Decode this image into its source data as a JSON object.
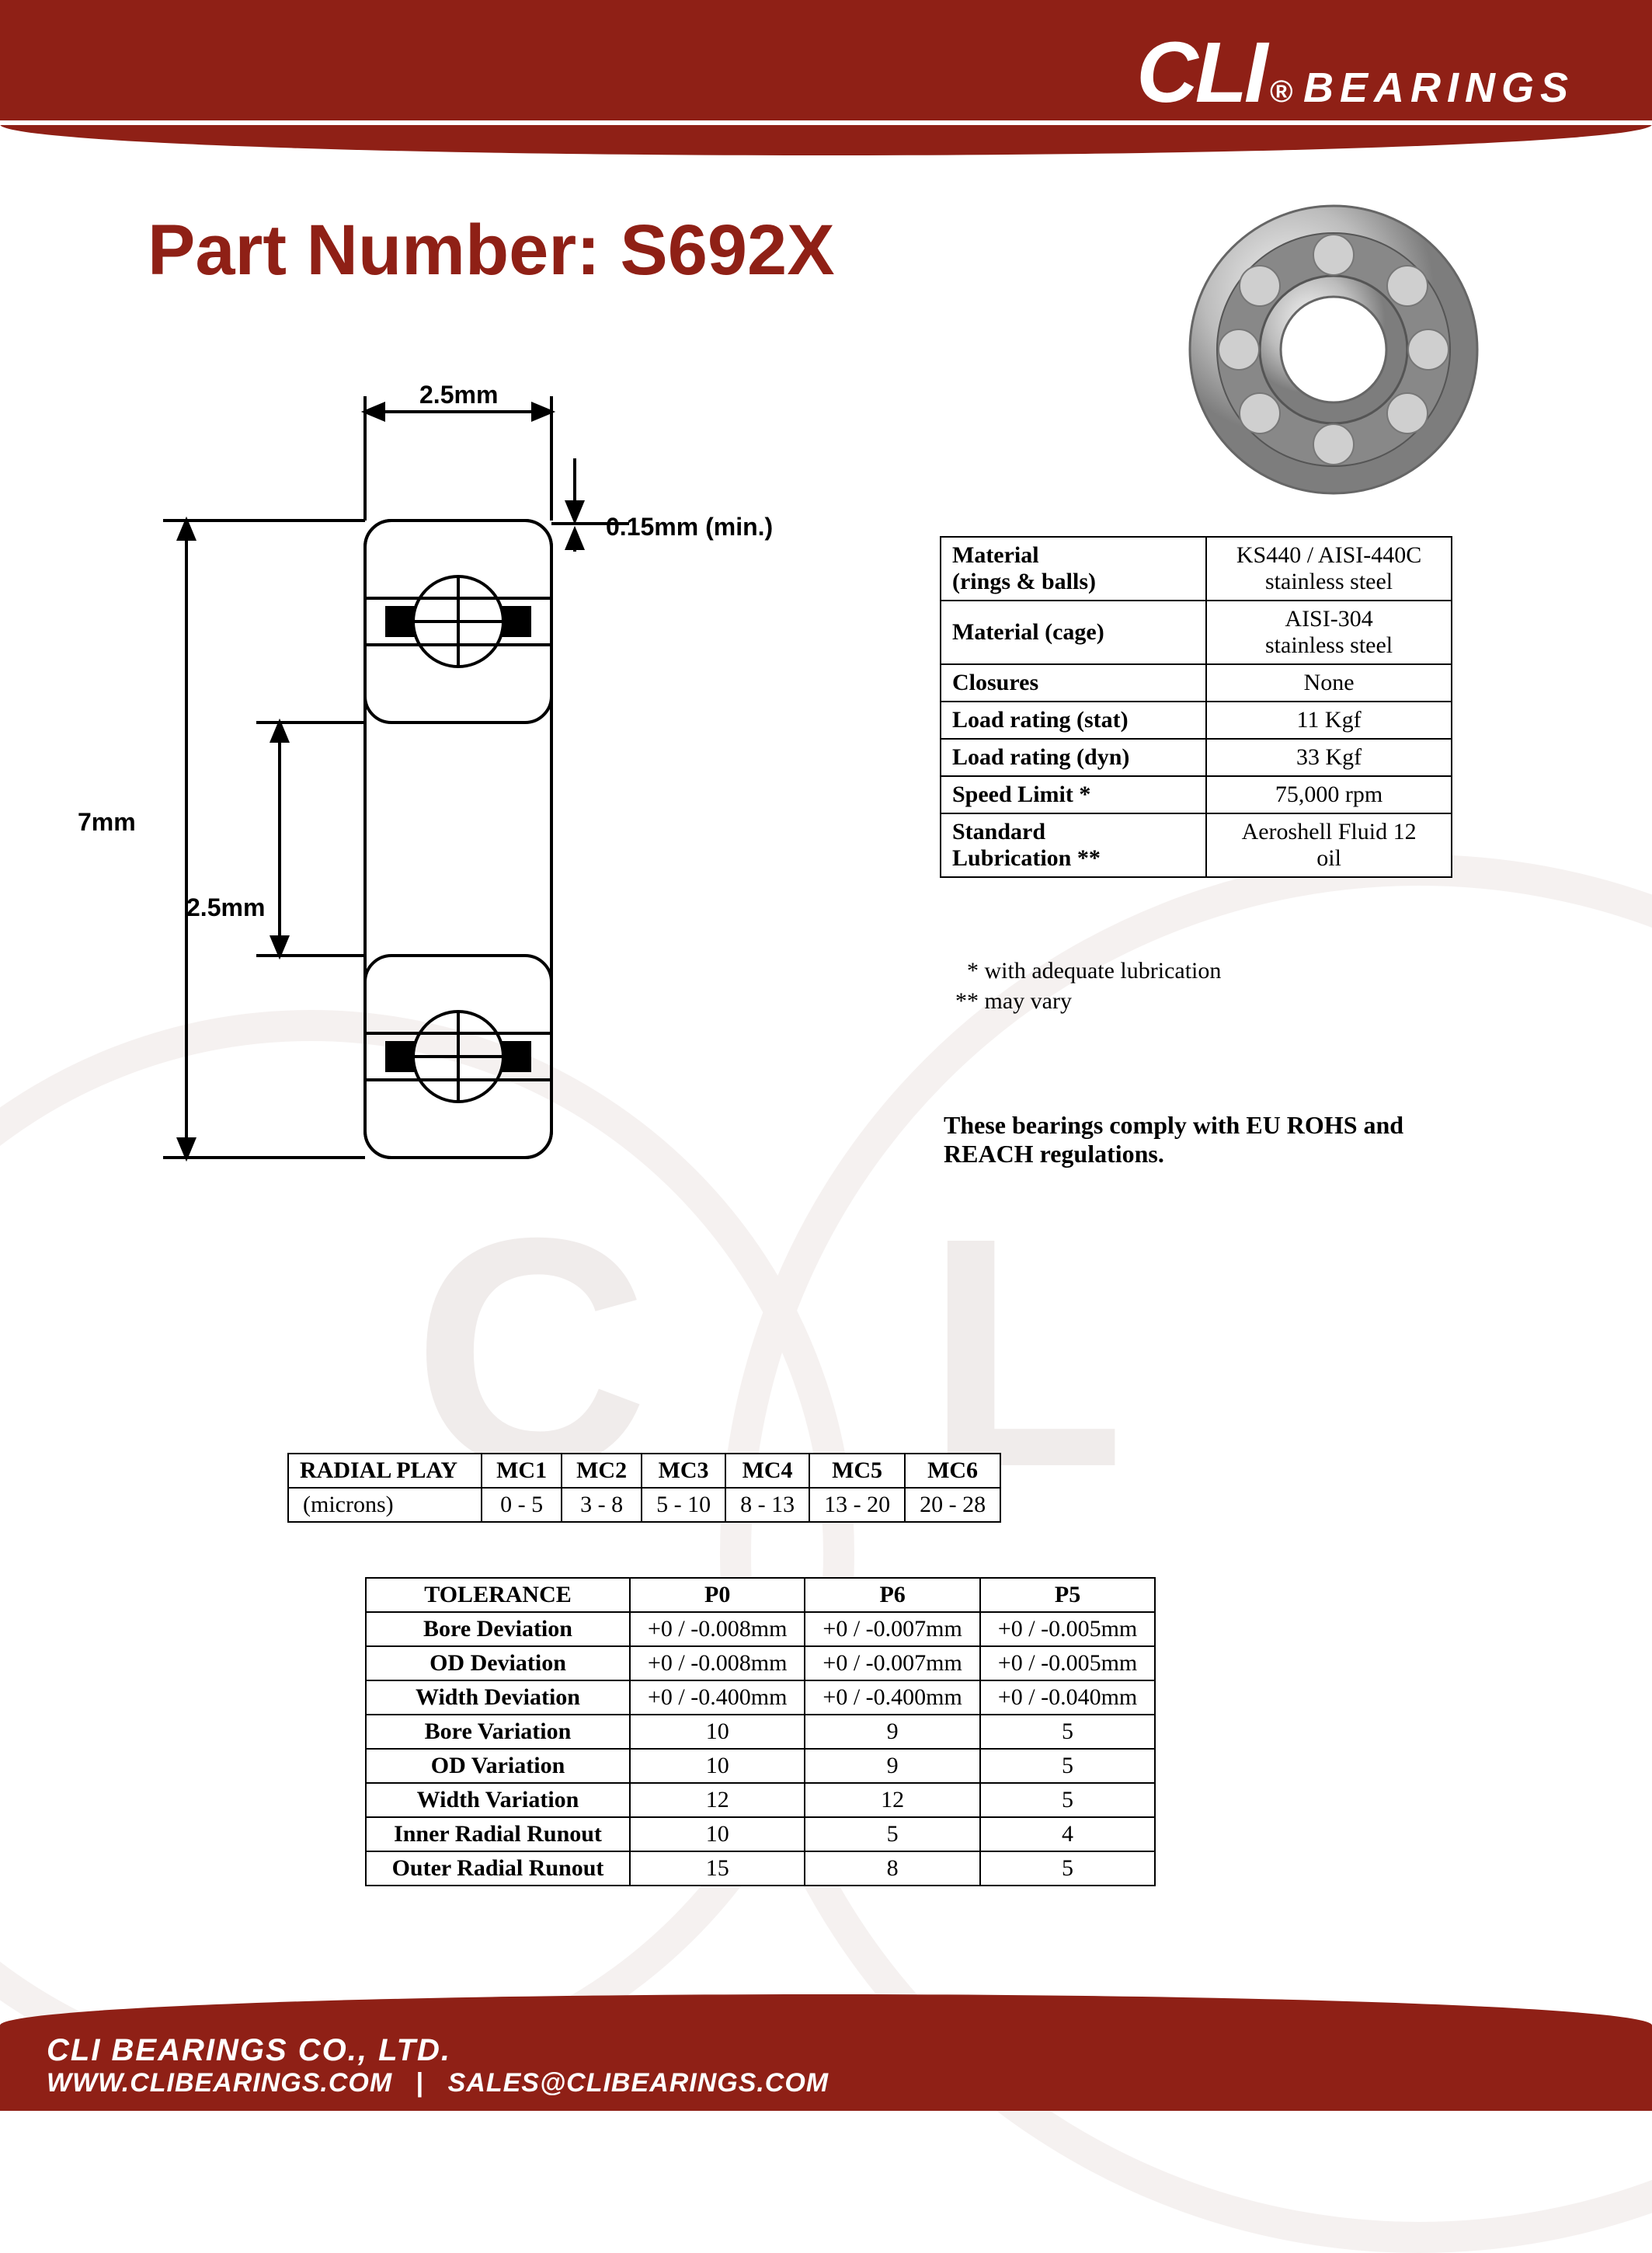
{
  "brand": {
    "name": "CLI",
    "reg": "®",
    "suffix": "BEARINGS",
    "color_primary": "#8f2016",
    "color_text": "#ffffff"
  },
  "title": {
    "label": "Part Number:",
    "value": "S692X"
  },
  "diagram": {
    "width_label": "2.5mm",
    "chamfer_label": "0.15mm (min.)",
    "outer_diameter_label": "7mm",
    "bore_label": "2.5mm",
    "stroke_color": "#000000",
    "line_width": 4
  },
  "specs": {
    "rows": [
      {
        "label": "Material\n(rings & balls)",
        "value": "KS440 / AISI-440C\nstainless steel"
      },
      {
        "label": "Material (cage)",
        "value": "AISI-304\nstainless steel"
      },
      {
        "label": "Closures",
        "value": "None"
      },
      {
        "label": "Load rating (stat)",
        "value": "11 Kgf"
      },
      {
        "label": "Load rating (dyn)",
        "value": "33 Kgf"
      },
      {
        "label": "Speed Limit *",
        "value": "75,000 rpm"
      },
      {
        "label": "Standard\nLubrication **",
        "value": "Aeroshell Fluid 12\noil"
      }
    ],
    "note1": "* with adequate lubrication",
    "note2": "** may vary"
  },
  "compliance": "These bearings comply with EU ROHS and REACH  regulations.",
  "radial_play": {
    "header_label": "RADIAL PLAY",
    "unit_label": "(microns)",
    "columns": [
      "MC1",
      "MC2",
      "MC3",
      "MC4",
      "MC5",
      "MC6"
    ],
    "values": [
      "0 - 5",
      "3 - 8",
      "5 - 10",
      "8 - 13",
      "13 - 20",
      "20 - 28"
    ]
  },
  "tolerance": {
    "header": "TOLERANCE",
    "columns": [
      "P0",
      "P6",
      "P5"
    ],
    "rows": [
      {
        "label": "Bore Deviation",
        "cells": [
          "+0 / -0.008mm",
          "+0 / -0.007mm",
          "+0 / -0.005mm"
        ]
      },
      {
        "label": "OD Deviation",
        "cells": [
          "+0 / -0.008mm",
          "+0 / -0.007mm",
          "+0 / -0.005mm"
        ]
      },
      {
        "label": "Width Deviation",
        "cells": [
          "+0 / -0.400mm",
          "+0 / -0.400mm",
          "+0 / -0.040mm"
        ]
      },
      {
        "label": "Bore Variation",
        "cells": [
          "10",
          "9",
          "5"
        ]
      },
      {
        "label": "OD Variation",
        "cells": [
          "10",
          "9",
          "5"
        ]
      },
      {
        "label": "Width Variation",
        "cells": [
          "12",
          "12",
          "5"
        ]
      },
      {
        "label": "Inner Radial Runout",
        "cells": [
          "10",
          "5",
          "4"
        ]
      },
      {
        "label": "Outer Radial Runout",
        "cells": [
          "15",
          "8",
          "5"
        ]
      }
    ]
  },
  "footer": {
    "company": "CLI BEARINGS CO., LTD.",
    "website": "WWW.CLIBEARINGS.COM",
    "email": "SALES@CLIBEARINGS.COM"
  },
  "bearing_image": {
    "outer_color": "#c9c9c9",
    "inner_color": "#9a9a9a",
    "ball_color": "#b8b8b8",
    "highlight": "#f2f2f2"
  }
}
